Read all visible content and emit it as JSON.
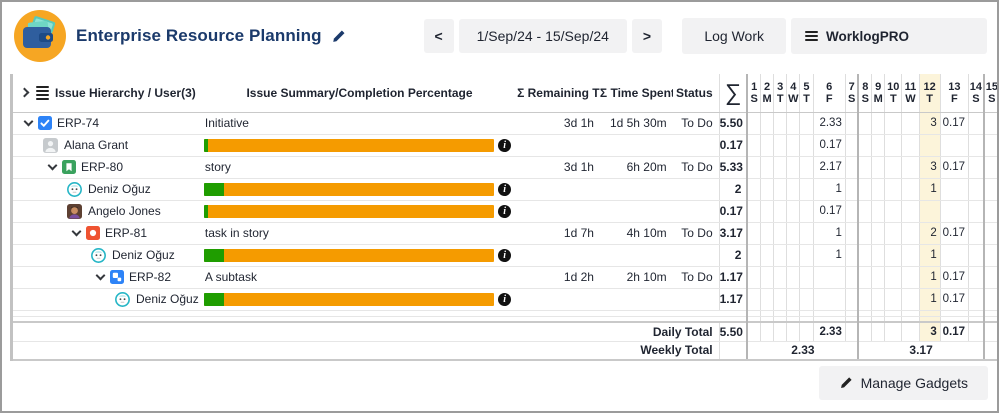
{
  "header": {
    "logo_icon": "wallet-icon",
    "title": "Enterprise Resource Planning",
    "edit_icon": "pencil-icon",
    "date_nav": {
      "prev": "<",
      "range": "1/Sep/24 - 15/Sep/24",
      "next": ">"
    },
    "log_work_label": "Log Work",
    "worklogpro_label": "WorklogPRO",
    "worklogpro_icon": "menu-icon"
  },
  "table": {
    "columns": {
      "hierarchy": "Issue Hierarchy / User(3)",
      "summary": "Issue Summary/Completion Percentage",
      "remaining": "Σ Remaining Time",
      "spent": "Σ Time Spent",
      "status": "Status",
      "sigma": "∑"
    },
    "days": [
      {
        "num": "1",
        "dow": "S"
      },
      {
        "num": "2",
        "dow": "M"
      },
      {
        "num": "3",
        "dow": "T"
      },
      {
        "num": "4",
        "dow": "W"
      },
      {
        "num": "5",
        "dow": "T"
      },
      {
        "num": "6",
        "dow": "F"
      },
      {
        "num": "7",
        "dow": "S"
      },
      {
        "num": "8",
        "dow": "S"
      },
      {
        "num": "9",
        "dow": "M"
      },
      {
        "num": "10",
        "dow": "T"
      },
      {
        "num": "11",
        "dow": "W"
      },
      {
        "num": "12",
        "dow": "T"
      },
      {
        "num": "13",
        "dow": "F"
      },
      {
        "num": "14",
        "dow": "S"
      },
      {
        "num": "15",
        "dow": "S"
      }
    ],
    "today_day": "12",
    "week_start_days": [
      "1",
      "8",
      "15"
    ],
    "rows": [
      {
        "type": "issue",
        "level": 0,
        "icon": "initiative-issue-icon",
        "key": "ERP-74",
        "summary": "Initiative",
        "remaining": "3d 1h",
        "spent": "1d 5h 30m",
        "status": "To Do",
        "total": "5.50",
        "values": {
          "6": "2.33",
          "12": "3",
          "13": "0.17"
        }
      },
      {
        "type": "user",
        "level": 1,
        "avatar": "gray-avatar",
        "name": "Alana Grant",
        "progress_green_pct": 1.5,
        "total": "0.17",
        "values": {
          "6": "0.17"
        }
      },
      {
        "type": "issue",
        "level": 1,
        "icon": "story-issue-icon",
        "key": "ERP-80",
        "summary": "story",
        "remaining": "3d 1h",
        "spent": "6h 20m",
        "status": "To Do",
        "total": "5.33",
        "values": {
          "6": "2.17",
          "12": "3",
          "13": "0.17"
        }
      },
      {
        "type": "user",
        "level": 2,
        "avatar": "teal-avatar",
        "name": "Deniz Oğuz",
        "progress_green_pct": 7,
        "total": "2",
        "values": {
          "6": "1",
          "12": "1"
        }
      },
      {
        "type": "user",
        "level": 2,
        "avatar": "photo-avatar",
        "name": "Angelo Jones",
        "progress_green_pct": 1.5,
        "total": "0.17",
        "values": {
          "6": "0.17"
        }
      },
      {
        "type": "issue",
        "level": 2,
        "icon": "task-issue-icon",
        "key": "ERP-81",
        "summary": "task in story",
        "remaining": "1d 7h",
        "spent": "4h 10m",
        "status": "To Do",
        "total": "3.17",
        "values": {
          "6": "1",
          "12": "2",
          "13": "0.17"
        }
      },
      {
        "type": "user",
        "level": 3,
        "avatar": "teal-avatar",
        "name": "Deniz Oğuz",
        "progress_green_pct": 7,
        "total": "2",
        "values": {
          "6": "1",
          "12": "1"
        }
      },
      {
        "type": "issue",
        "level": 3,
        "icon": "subtask-issue-icon",
        "key": "ERP-82",
        "summary": "A subtask",
        "remaining": "1d 2h",
        "spent": "2h 10m",
        "status": "To Do",
        "total": "1.17",
        "values": {
          "12": "1",
          "13": "0.17"
        }
      },
      {
        "type": "user",
        "level": 4,
        "avatar": "teal-avatar",
        "name": "Deniz Oğuz",
        "progress_green_pct": 7,
        "total": "1.17",
        "values": {
          "12": "1",
          "13": "0.17"
        }
      },
      {
        "type": "spacer"
      },
      {
        "type": "spacer"
      }
    ],
    "daily_total": {
      "label": "Daily Total",
      "total": "5.50",
      "values": {
        "6": "2.33",
        "12": "3",
        "13": "0.17"
      }
    },
    "weekly_total": {
      "label": "Weekly Total",
      "weeks": [
        {
          "days": 7,
          "value": "2.33"
        },
        {
          "days": 7,
          "value": "3.17"
        },
        {
          "days": 1,
          "value": ""
        }
      ]
    }
  },
  "footer": {
    "manage_gadgets_label": "Manage Gadgets",
    "manage_gadgets_icon": "pencil-icon"
  },
  "colors": {
    "title": "#1b3a6b",
    "logo_circle": "#f6a623",
    "logo_wallet": "#2f5e9e",
    "progress_done": "#1f9d00",
    "progress_remaining": "#f59b00",
    "today_column": "#fcf4da",
    "button_bg": "#f2f2f3"
  }
}
